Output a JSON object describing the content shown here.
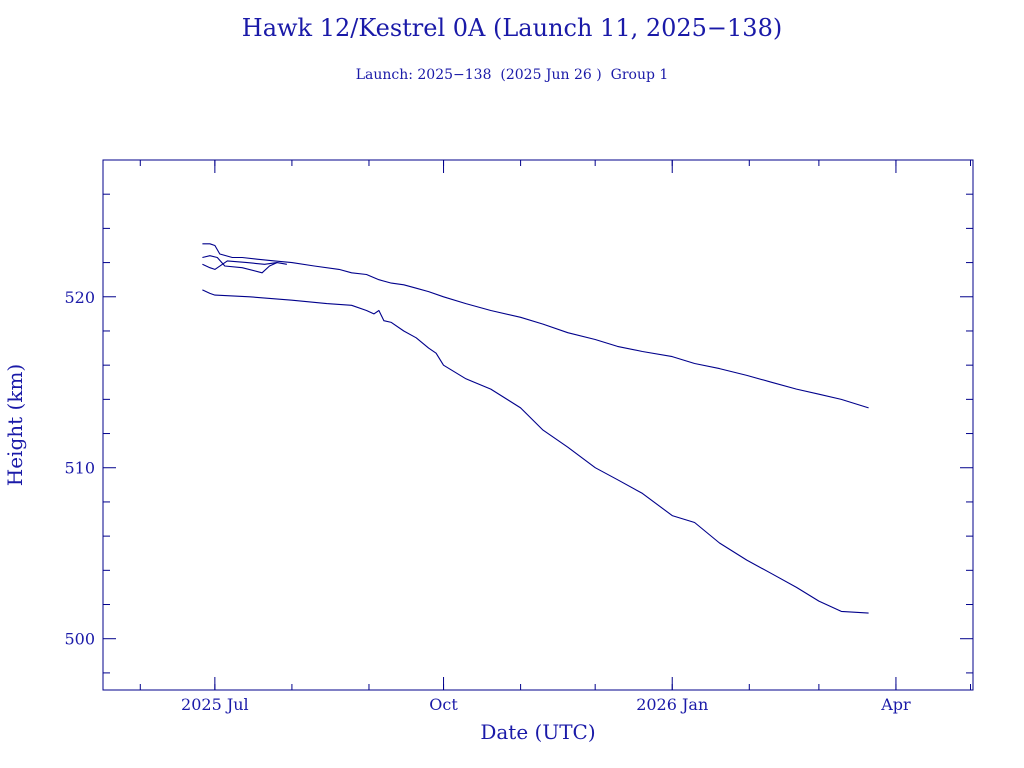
{
  "chart_data": {
    "type": "line",
    "title": "Hawk 12/Kestrel 0A (Launch 11, 2025−138)",
    "subtitle": "Launch: 2025−138  (2025 Jun 26 )  Group 1",
    "xlabel": "Date (UTC)",
    "ylabel": "Height (km)",
    "xlim": [
      "2025-05-17",
      "2026-05-02"
    ],
    "ylim": [
      497,
      528
    ],
    "x_ticks": [
      {
        "date": "2025-07-01",
        "label": "2025 Jul"
      },
      {
        "date": "2025-10-01",
        "label": "Oct"
      },
      {
        "date": "2026-01-01",
        "label": "2026 Jan"
      },
      {
        "date": "2026-04-01",
        "label": "Apr"
      }
    ],
    "y_ticks": [
      500,
      510,
      520
    ],
    "color": "#00008b",
    "grid": false,
    "series": [
      {
        "x": [
          "2025-06-26",
          "2025-06-29",
          "2025-07-01",
          "2025-07-03",
          "2025-07-08",
          "2025-07-12",
          "2025-07-18",
          "2025-07-25",
          "2025-08-01",
          "2025-08-10",
          "2025-08-20",
          "2025-08-25",
          "2025-08-31",
          "2025-09-05",
          "2025-09-10",
          "2025-09-15",
          "2025-09-20",
          "2025-09-25",
          "2025-10-01",
          "2025-10-10",
          "2025-10-20",
          "2025-11-01",
          "2025-11-10",
          "2025-11-20",
          "2025-12-01",
          "2025-12-10",
          "2025-12-20",
          "2026-01-01",
          "2026-01-10",
          "2026-01-20",
          "2026-01-31",
          "2026-02-10",
          "2026-02-20",
          "2026-03-01",
          "2026-03-10",
          "2026-03-21"
        ],
        "y": [
          523.1,
          523.1,
          523.0,
          522.5,
          522.3,
          522.3,
          522.2,
          522.1,
          522.0,
          521.8,
          521.6,
          521.4,
          521.3,
          521.0,
          520.8,
          520.7,
          520.5,
          520.3,
          520.0,
          519.6,
          519.2,
          518.8,
          518.4,
          517.9,
          517.5,
          517.1,
          516.8,
          516.5,
          516.1,
          515.8,
          515.4,
          515.0,
          514.6,
          514.3,
          514.0,
          513.5
        ]
      },
      {
        "x": [
          "2025-06-26",
          "2025-06-29",
          "2025-07-02",
          "2025-07-05",
          "2025-07-12",
          "2025-07-20",
          "2025-07-23",
          "2025-07-26",
          "2025-07-30"
        ],
        "y": [
          522.3,
          522.4,
          522.3,
          521.8,
          521.7,
          521.4,
          521.8,
          522.0,
          521.9
        ]
      },
      {
        "x": [
          "2025-06-26",
          "2025-06-29",
          "2025-07-01",
          "2025-07-06",
          "2025-07-14",
          "2025-07-21",
          "2025-07-26"
        ],
        "y": [
          521.9,
          521.7,
          521.6,
          522.1,
          522.0,
          521.9,
          522.0
        ]
      },
      {
        "x": [
          "2025-06-26",
          "2025-06-29",
          "2025-07-01",
          "2025-07-15",
          "2025-08-01",
          "2025-08-15",
          "2025-08-25",
          "2025-08-31",
          "2025-09-03",
          "2025-09-05",
          "2025-09-07",
          "2025-09-10",
          "2025-09-15",
          "2025-09-20",
          "2025-09-25",
          "2025-09-28",
          "2025-10-01",
          "2025-10-10",
          "2025-10-20",
          "2025-11-01",
          "2025-11-10",
          "2025-11-20",
          "2025-12-01",
          "2025-12-10",
          "2025-12-20",
          "2026-01-01",
          "2026-01-10",
          "2026-01-20",
          "2026-01-31",
          "2026-02-10",
          "2026-02-20",
          "2026-03-01",
          "2026-03-10",
          "2026-03-21"
        ],
        "y": [
          520.4,
          520.2,
          520.1,
          520.0,
          519.8,
          519.6,
          519.5,
          519.2,
          519.0,
          519.2,
          518.6,
          518.5,
          518.0,
          517.6,
          517.0,
          516.7,
          516.0,
          515.2,
          514.6,
          513.5,
          512.2,
          511.2,
          510.0,
          509.3,
          508.5,
          507.2,
          506.8,
          505.6,
          504.6,
          503.8,
          503.0,
          502.2,
          501.6,
          501.5
        ]
      }
    ]
  }
}
